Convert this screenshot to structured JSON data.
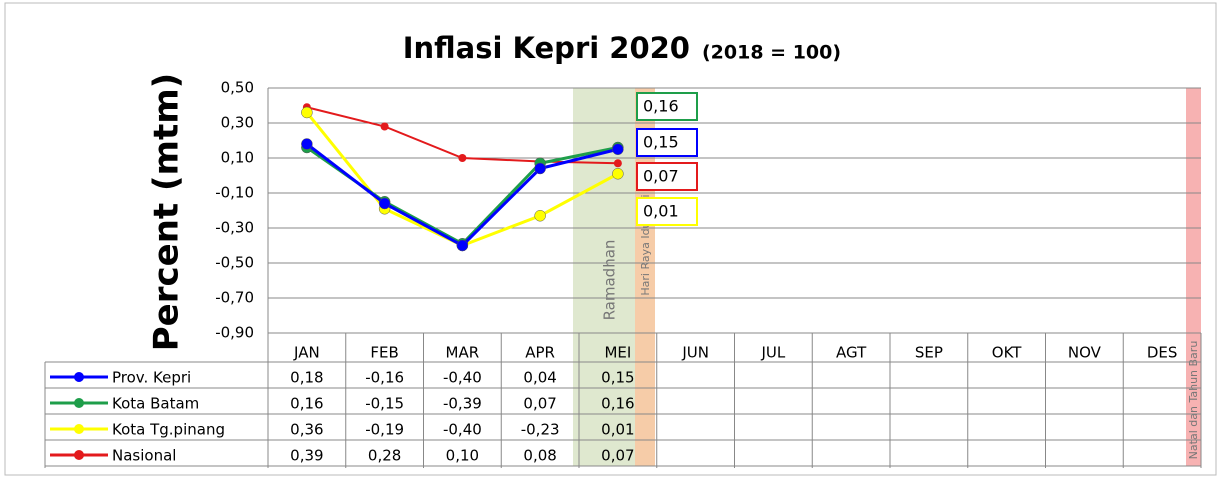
{
  "chart_data": {
    "type": "line",
    "title": "Inflasi Kepri 2020",
    "subtitle": "(2018 = 100)",
    "y_label": "Percent (mtm)",
    "categories": [
      "JAN",
      "FEB",
      "MAR",
      "APR",
      "MEI",
      "JUN",
      "JUL",
      "AGT",
      "SEP",
      "OKT",
      "NOV",
      "DES"
    ],
    "series": [
      {
        "name": "Prov. Kepri",
        "color": "#0000ff",
        "values": [
          0.18,
          -0.16,
          -0.4,
          0.04,
          0.15,
          null,
          null,
          null,
          null,
          null,
          null,
          null
        ],
        "value_labels": [
          "0,18",
          "-0,16",
          "-0,40",
          "0,04",
          "0,15",
          null,
          null,
          null,
          null,
          null,
          null,
          null
        ]
      },
      {
        "name": "Kota Batam",
        "color": "#1e9e4a",
        "values": [
          0.16,
          -0.15,
          -0.39,
          0.07,
          0.16,
          null,
          null,
          null,
          null,
          null,
          null,
          null
        ],
        "value_labels": [
          "0,16",
          "-0,15",
          "-0,39",
          "0,07",
          "0,16",
          null,
          null,
          null,
          null,
          null,
          null,
          null
        ]
      },
      {
        "name": "Kota Tg.pinang",
        "color": "#ffff00",
        "values": [
          0.36,
          -0.19,
          -0.4,
          -0.23,
          0.01,
          null,
          null,
          null,
          null,
          null,
          null,
          null
        ],
        "value_labels": [
          "0,36",
          "-0,19",
          "-0,40",
          "-0,23",
          "0,01",
          null,
          null,
          null,
          null,
          null,
          null,
          null
        ]
      },
      {
        "name": "Nasional",
        "color": "#e31a1c",
        "values": [
          0.39,
          0.28,
          0.1,
          0.08,
          0.07,
          null,
          null,
          null,
          null,
          null,
          null,
          null
        ],
        "value_labels": [
          "0,39",
          "0,28",
          "0,10",
          "0,08",
          "0,07",
          null,
          null,
          null,
          null,
          null,
          null,
          null
        ]
      }
    ],
    "ylim": [
      -0.9,
      0.5
    ],
    "yticks": [
      {
        "value": -0.9,
        "label": "-0,90"
      },
      {
        "value": -0.7,
        "label": "-0,70"
      },
      {
        "value": -0.5,
        "label": "-0,50"
      },
      {
        "value": -0.3,
        "label": "-0,30"
      },
      {
        "value": -0.1,
        "label": "-0,10"
      },
      {
        "value": 0.1,
        "label": "0,10"
      },
      {
        "value": 0.3,
        "label": "0,30"
      },
      {
        "value": 0.5,
        "label": "0,50"
      }
    ],
    "grid": true,
    "annotations": [
      "Ramadhan",
      "Hari Raya Idul Fitri",
      "Natal dan Tahun Baru"
    ]
  }
}
